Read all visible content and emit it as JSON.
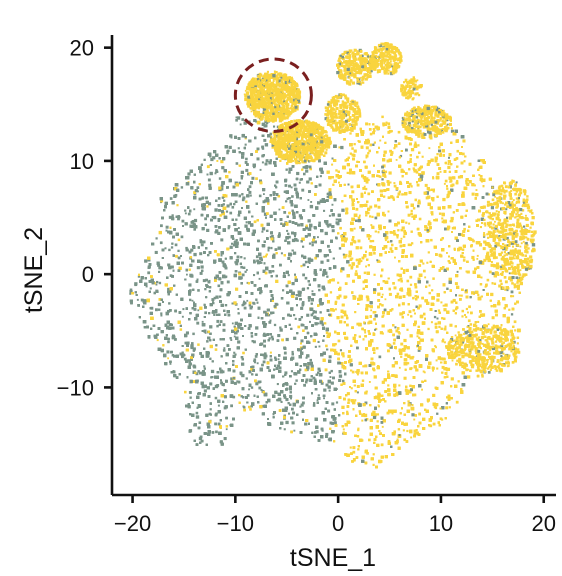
{
  "chart_data": {
    "type": "scatter",
    "title": "",
    "xlabel": "tSNE_1",
    "ylabel": "tSNE_2",
    "xlim": [
      -22,
      21
    ],
    "ylim": [
      -19.5,
      22
    ],
    "xticks": [
      -20,
      -10,
      0,
      10,
      20
    ],
    "yticks": [
      -10,
      0,
      10,
      20
    ],
    "x_tick_labels": [
      "−20",
      "−10",
      "0",
      "10",
      "20"
    ],
    "y_tick_labels": [
      "−10",
      "0",
      "10",
      "20"
    ],
    "grid": false,
    "legend": "none",
    "series": [
      {
        "color": "#7a9488",
        "regions": [
          {
            "center": [
              -10,
              0
            ],
            "extent": [
              -20.5,
              -0.5,
              -15,
              14.5
            ]
          }
        ]
      },
      {
        "color": "#f9d43e",
        "regions": [
          {
            "center": [
              9,
              0
            ],
            "extent": [
              -0.5,
              18.5,
              -17.5,
              13
            ]
          },
          {
            "center": [
              -4,
              11.5
            ],
            "extent": [
              -7,
              -1,
              9.5,
              12.5
            ]
          },
          {
            "center": [
              3,
              18.5
            ],
            "extent": [
              -2,
              7,
              15.5,
              20.5
            ]
          },
          {
            "center": [
              -6.5,
              15.8
            ],
            "extent": [
              -9,
              -3.5,
              13.5,
              18
            ]
          }
        ]
      }
    ],
    "annotations": [
      {
        "shape": "dashed-circle",
        "center": [
          -6.3,
          15.8
        ],
        "radius": [
          3.7,
          3.2
        ],
        "color": "#7a1f1f"
      }
    ]
  }
}
